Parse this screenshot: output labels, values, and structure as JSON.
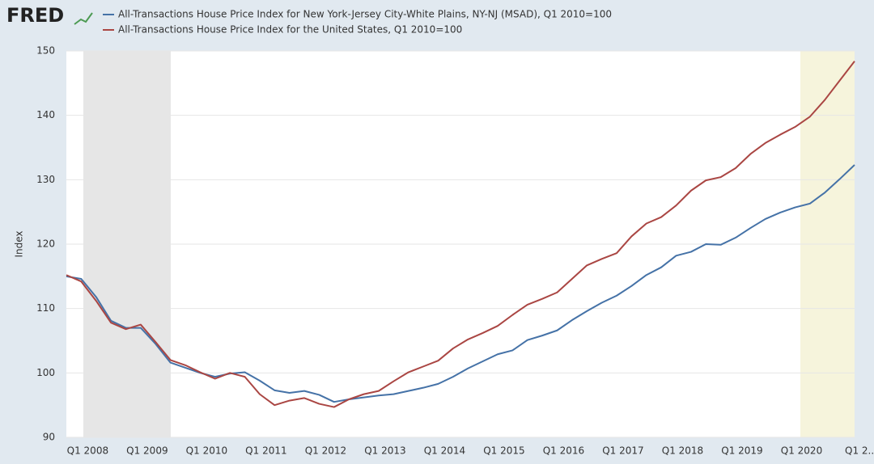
{
  "logo": "FRED",
  "chart_data": {
    "type": "line",
    "y_label": "Index",
    "categories": [
      null,
      "Q1 2008",
      null,
      null,
      null,
      "Q1 2009",
      null,
      null,
      null,
      "Q1 2010",
      null,
      null,
      null,
      "Q1 2011",
      null,
      null,
      null,
      "Q1 2012",
      null,
      null,
      null,
      "Q1 2013",
      null,
      null,
      null,
      "Q1 2014",
      null,
      null,
      null,
      "Q1 2015",
      null,
      null,
      null,
      "Q1 2016",
      null,
      null,
      null,
      "Q1 2017",
      null,
      null,
      null,
      "Q1 2018",
      null,
      null,
      null,
      "Q1 2019",
      null,
      null,
      null,
      "Q1 2020",
      null,
      null,
      null,
      "Q1 2..."
    ],
    "series": [
      {
        "name": "All-Transactions House Price Index for New York-Jersey City-White Plains, NY-NJ (MSAD), Q1 2010=100",
        "color": "#4572a7",
        "values": [
          115.0,
          114.6,
          111.8,
          108.1,
          107.0,
          107.0,
          104.5,
          101.6,
          100.8,
          100.0,
          99.4,
          99.9,
          100.1,
          98.8,
          97.3,
          96.9,
          97.2,
          96.6,
          95.5,
          95.9,
          96.2,
          96.5,
          96.7,
          97.2,
          97.7,
          98.3,
          99.4,
          100.7,
          101.8,
          102.9,
          103.5,
          105.1,
          105.8,
          106.6,
          108.2,
          109.6,
          110.9,
          112.0,
          113.5,
          115.2,
          116.4,
          118.2,
          118.8,
          120.0,
          119.9,
          121.0,
          122.5,
          123.9,
          124.9,
          125.7,
          126.3,
          128.0,
          130.1,
          132.3
        ]
      },
      {
        "name": "All-Transactions House Price Index for the United States, Q1 2010=100",
        "color": "#aa4643",
        "values": [
          115.2,
          114.2,
          111.2,
          107.8,
          106.8,
          107.5,
          104.8,
          102.0,
          101.2,
          100.1,
          99.1,
          100.0,
          99.4,
          96.7,
          95.0,
          95.7,
          96.1,
          95.2,
          94.7,
          95.9,
          96.7,
          97.2,
          98.7,
          100.1,
          101.0,
          101.9,
          103.8,
          105.2,
          106.2,
          107.3,
          109.0,
          110.6,
          111.5,
          112.5,
          114.6,
          116.7,
          117.7,
          118.6,
          121.2,
          123.2,
          124.2,
          126.0,
          128.3,
          129.9,
          130.4,
          131.8,
          134.0,
          135.7,
          137.0,
          138.2,
          139.8,
          142.4,
          145.4,
          148.4
        ]
      }
    ],
    "ylim": [
      90,
      150
    ],
    "yticks": [
      90,
      100,
      110,
      120,
      130,
      140,
      150
    ],
    "grid": true
  }
}
